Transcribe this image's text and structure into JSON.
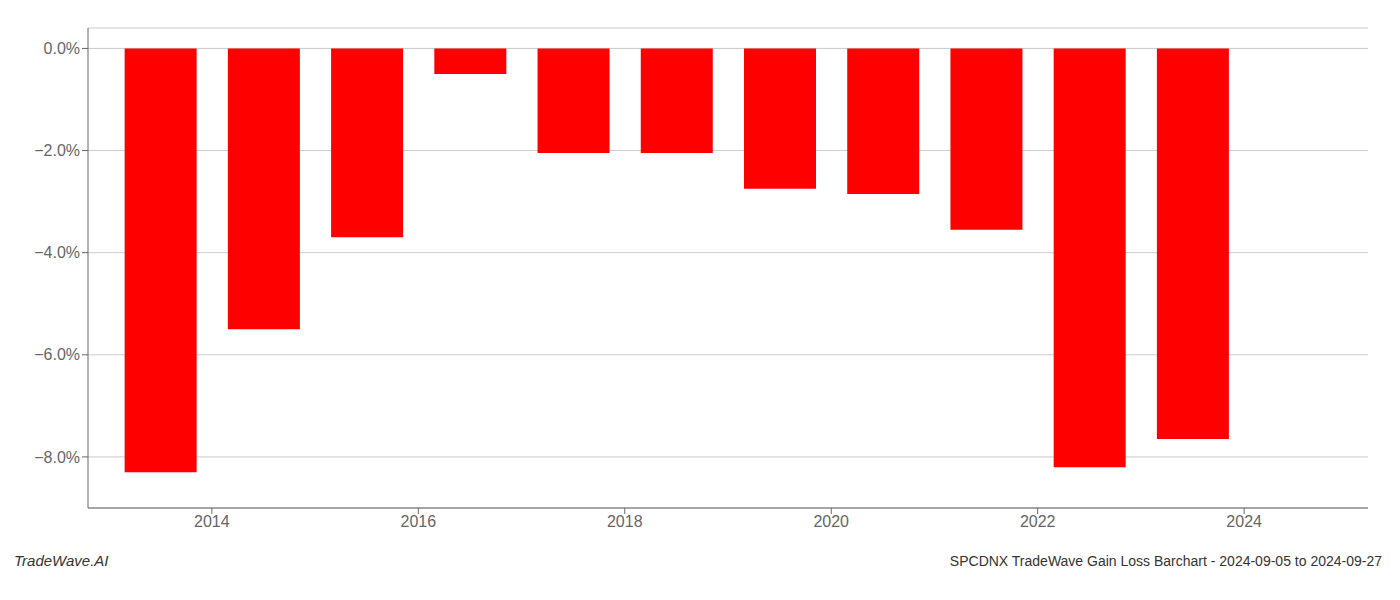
{
  "chart_data": {
    "type": "bar",
    "title": "SPCDNX TradeWave Gain Loss Barchart - 2024-09-05 to 2024-09-27",
    "annotations": [
      "TradeWave.AI"
    ],
    "x": [
      2013.5,
      2014.5,
      2015.5,
      2016.5,
      2017.5,
      2018.5,
      2019.5,
      2020.5,
      2021.5,
      2022.5,
      2023.5
    ],
    "values": [
      -8.3,
      -5.5,
      -3.7,
      -0.5,
      -2.05,
      -2.05,
      -2.75,
      -2.85,
      -3.55,
      -8.2,
      -7.65
    ],
    "color": "#ff0000",
    "xlim": [
      2012.8,
      2025.2
    ],
    "xticks": [
      2014,
      2016,
      2018,
      2020,
      2022,
      2024
    ],
    "ylim": [
      -9.0,
      0.4
    ],
    "yticks": [
      {
        "value": 0.0,
        "label": "0.0%"
      },
      {
        "value": -2.0,
        "label": "−2.0%"
      },
      {
        "value": -4.0,
        "label": "−4.0%"
      },
      {
        "value": -6.0,
        "label": "−6.0%"
      },
      {
        "value": -8.0,
        "label": "−8.0%"
      }
    ],
    "grid": true
  }
}
